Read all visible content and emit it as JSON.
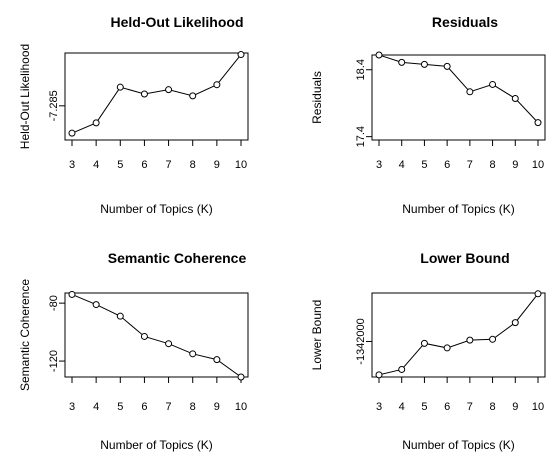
{
  "chart_data": [
    {
      "type": "line",
      "title": "Held-Out Likelihood",
      "xlabel": "Number of Topics (K)",
      "ylabel": "Held-Out Likelihood",
      "x": [
        3,
        4,
        5,
        6,
        7,
        8,
        9,
        10
      ],
      "values": [
        -7.2938,
        -7.2905,
        -7.279,
        -7.2812,
        -7.2798,
        -7.2818,
        -7.2782,
        -7.2685
      ],
      "x_ticks": [
        "3",
        "4",
        "5",
        "6",
        "7",
        "8",
        "9",
        "10"
      ],
      "y_ticks": [
        {
          "value": -7.285,
          "label": "-7.285"
        }
      ],
      "ylim": [
        -7.296,
        -7.268
      ],
      "marker": "open-circle",
      "grid": false
    },
    {
      "type": "line",
      "title": "Residuals",
      "xlabel": "Number of Topics (K)",
      "ylabel": "Residuals",
      "x": [
        3,
        4,
        5,
        6,
        7,
        8,
        9,
        10
      ],
      "values": [
        18.62,
        18.51,
        18.48,
        18.45,
        18.07,
        18.18,
        17.97,
        17.61
      ],
      "x_ticks": [
        "3",
        "4",
        "5",
        "6",
        "7",
        "8",
        "9",
        "10"
      ],
      "y_ticks": [
        {
          "value": 18.4,
          "label": "18.4"
        },
        {
          "value": 17.4,
          "label": "17.4"
        }
      ],
      "ylim": [
        17.35,
        18.62
      ],
      "marker": "open-circle",
      "grid": false
    },
    {
      "type": "line",
      "title": "Semantic Coherence",
      "xlabel": "Number of Topics (K)",
      "ylabel": "Semantic Coherence",
      "x": [
        3,
        4,
        5,
        6,
        7,
        8,
        9,
        10
      ],
      "values": [
        -74,
        -81,
        -89,
        -103,
        -108,
        -115,
        -119,
        -131
      ],
      "x_ticks": [
        "3",
        "4",
        "5",
        "6",
        "7",
        "8",
        "9",
        "10"
      ],
      "y_ticks": [
        {
          "value": -80,
          "label": "-80"
        },
        {
          "value": -120,
          "label": "-120"
        }
      ],
      "ylim": [
        -131,
        -73
      ],
      "marker": "open-circle",
      "grid": false
    },
    {
      "type": "line",
      "title": "Lower Bound",
      "xlabel": "Number of Topics (K)",
      "ylabel": "Lower Bound",
      "x": [
        3,
        4,
        5,
        6,
        7,
        8,
        9,
        10
      ],
      "values": [
        -1342620,
        -1342520,
        -1342035,
        -1342120,
        -1341975,
        -1341960,
        -1341650,
        -1341115
      ],
      "x_ticks": [
        "3",
        "4",
        "5",
        "6",
        "7",
        "8",
        "9",
        "10"
      ],
      "y_ticks": [
        {
          "value": -1342000,
          "label": "-1342000"
        }
      ],
      "ylim": [
        -1342660,
        -1341100
      ],
      "marker": "open-circle",
      "grid": false
    }
  ]
}
